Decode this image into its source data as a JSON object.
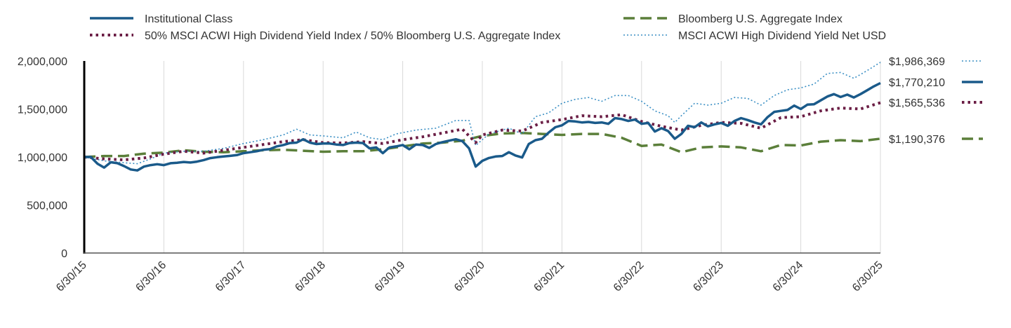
{
  "chart_data": {
    "type": "line",
    "title": "",
    "xlabel": "",
    "ylabel": "",
    "ylim": [
      0,
      2000000
    ],
    "yticks": [
      0,
      500000,
      1000000,
      1500000,
      2000000
    ],
    "ytick_labels": [
      "0",
      "500,000",
      "1,000,000",
      "1,500,000",
      "2,000,000"
    ],
    "xlim": [
      0,
      120
    ],
    "xticks": [
      0,
      12,
      24,
      36,
      48,
      60,
      72,
      84,
      96,
      108,
      120
    ],
    "xtick_labels": [
      "6/30/15",
      "6/30/16",
      "6/30/17",
      "6/30/18",
      "6/30/19",
      "6/30/20",
      "6/30/21",
      "6/30/22",
      "6/30/23",
      "6/30/24",
      "6/30/25"
    ],
    "x_unit": "months since 6/30/15",
    "grid": "vertical",
    "legend_position": "top",
    "series": [
      {
        "name": "Institutional Class",
        "style": "solid",
        "color": "#1a5a8a",
        "end_label": "$1,770,210",
        "points": [
          [
            0,
            1000000
          ],
          [
            1,
            1000000
          ],
          [
            2,
            930000
          ],
          [
            3,
            890000
          ],
          [
            4,
            945000
          ],
          [
            5,
            935000
          ],
          [
            6,
            905000
          ],
          [
            7,
            870000
          ],
          [
            8,
            860000
          ],
          [
            9,
            900000
          ],
          [
            10,
            915000
          ],
          [
            11,
            925000
          ],
          [
            12,
            915000
          ],
          [
            13,
            935000
          ],
          [
            14,
            940000
          ],
          [
            15,
            948000
          ],
          [
            16,
            942000
          ],
          [
            17,
            952000
          ],
          [
            18,
            968000
          ],
          [
            19,
            988000
          ],
          [
            20,
            998000
          ],
          [
            21,
            1005000
          ],
          [
            22,
            1012000
          ],
          [
            23,
            1020000
          ],
          [
            24,
            1040000
          ],
          [
            25,
            1050000
          ],
          [
            26,
            1060000
          ],
          [
            27,
            1075000
          ],
          [
            28,
            1082000
          ],
          [
            29,
            1110000
          ],
          [
            30,
            1125000
          ],
          [
            31,
            1145000
          ],
          [
            32,
            1150000
          ],
          [
            33,
            1185000
          ],
          [
            34,
            1150000
          ],
          [
            35,
            1135000
          ],
          [
            36,
            1140000
          ],
          [
            37,
            1140000
          ],
          [
            38,
            1130000
          ],
          [
            39,
            1125000
          ],
          [
            40,
            1145000
          ],
          [
            41,
            1150000
          ],
          [
            42,
            1145000
          ],
          [
            43,
            1090000
          ],
          [
            44,
            1100000
          ],
          [
            45,
            1040000
          ],
          [
            46,
            1100000
          ],
          [
            47,
            1110000
          ],
          [
            48,
            1125000
          ],
          [
            49,
            1080000
          ],
          [
            50,
            1130000
          ],
          [
            51,
            1125000
          ],
          [
            52,
            1095000
          ],
          [
            53,
            1135000
          ],
          [
            54,
            1155000
          ],
          [
            55,
            1170000
          ],
          [
            56,
            1185000
          ],
          [
            57,
            1165000
          ],
          [
            58,
            1090000
          ],
          [
            59,
            900000
          ],
          [
            60,
            960000
          ],
          [
            61,
            990000
          ],
          [
            62,
            1005000
          ],
          [
            63,
            1010000
          ],
          [
            64,
            1050000
          ],
          [
            65,
            1015000
          ],
          [
            66,
            995000
          ],
          [
            67,
            1135000
          ],
          [
            68,
            1175000
          ],
          [
            69,
            1190000
          ],
          [
            70,
            1255000
          ],
          [
            71,
            1310000
          ],
          [
            72,
            1330000
          ],
          [
            73,
            1375000
          ],
          [
            74,
            1370000
          ],
          [
            75,
            1360000
          ],
          [
            76,
            1365000
          ],
          [
            77,
            1355000
          ],
          [
            78,
            1360000
          ],
          [
            79,
            1345000
          ],
          [
            80,
            1405000
          ],
          [
            81,
            1395000
          ],
          [
            82,
            1375000
          ],
          [
            83,
            1390000
          ],
          [
            84,
            1345000
          ],
          [
            85,
            1355000
          ],
          [
            86,
            1265000
          ],
          [
            87,
            1300000
          ],
          [
            88,
            1270000
          ],
          [
            89,
            1190000
          ],
          [
            90,
            1240000
          ],
          [
            91,
            1325000
          ],
          [
            92,
            1310000
          ],
          [
            93,
            1360000
          ],
          [
            94,
            1320000
          ],
          [
            95,
            1340000
          ],
          [
            96,
            1355000
          ],
          [
            97,
            1325000
          ],
          [
            98,
            1375000
          ],
          [
            99,
            1405000
          ],
          [
            100,
            1385000
          ],
          [
            101,
            1360000
          ],
          [
            102,
            1340000
          ],
          [
            103,
            1415000
          ],
          [
            104,
            1470000
          ],
          [
            105,
            1480000
          ],
          [
            106,
            1490000
          ],
          [
            107,
            1535000
          ],
          [
            108,
            1500000
          ],
          [
            109,
            1545000
          ],
          [
            110,
            1550000
          ],
          [
            111,
            1590000
          ],
          [
            112,
            1630000
          ],
          [
            113,
            1655000
          ],
          [
            114,
            1625000
          ],
          [
            115,
            1650000
          ],
          [
            116,
            1620000
          ],
          [
            117,
            1655000
          ],
          [
            118,
            1695000
          ],
          [
            119,
            1735000
          ],
          [
            120,
            1770210
          ]
        ]
      },
      {
        "name": "Bloomberg U.S. Aggregate Index",
        "style": "dashed",
        "color": "#5b7f3a",
        "end_label": "$1,190,376",
        "points": [
          [
            0,
            1000000
          ],
          [
            3,
            1010000
          ],
          [
            6,
            1010000
          ],
          [
            9,
            1035000
          ],
          [
            12,
            1045000
          ],
          [
            15,
            1070000
          ],
          [
            18,
            1055000
          ],
          [
            21,
            1050000
          ],
          [
            24,
            1060000
          ],
          [
            27,
            1070000
          ],
          [
            30,
            1075000
          ],
          [
            33,
            1065000
          ],
          [
            36,
            1055000
          ],
          [
            39,
            1060000
          ],
          [
            42,
            1060000
          ],
          [
            45,
            1080000
          ],
          [
            48,
            1110000
          ],
          [
            51,
            1140000
          ],
          [
            54,
            1150000
          ],
          [
            57,
            1170000
          ],
          [
            60,
            1220000
          ],
          [
            63,
            1245000
          ],
          [
            66,
            1250000
          ],
          [
            69,
            1240000
          ],
          [
            72,
            1230000
          ],
          [
            75,
            1240000
          ],
          [
            78,
            1240000
          ],
          [
            81,
            1200000
          ],
          [
            84,
            1115000
          ],
          [
            87,
            1130000
          ],
          [
            90,
            1050000
          ],
          [
            93,
            1100000
          ],
          [
            96,
            1110000
          ],
          [
            99,
            1100000
          ],
          [
            102,
            1060000
          ],
          [
            105,
            1125000
          ],
          [
            108,
            1120000
          ],
          [
            111,
            1160000
          ],
          [
            114,
            1175000
          ],
          [
            117,
            1165000
          ],
          [
            120,
            1190376
          ]
        ]
      },
      {
        "name": "50% MSCI ACWI High Dividend Yield Index / 50% Bloomberg U.S. Aggregate Index",
        "style": "dotted",
        "color": "#6b1e45",
        "end_label": "$1,565,536",
        "points": [
          [
            0,
            1000000
          ],
          [
            3,
            980000
          ],
          [
            6,
            970000
          ],
          [
            9,
            990000
          ],
          [
            12,
            1030000
          ],
          [
            15,
            1060000
          ],
          [
            18,
            1040000
          ],
          [
            21,
            1070000
          ],
          [
            24,
            1100000
          ],
          [
            27,
            1130000
          ],
          [
            30,
            1160000
          ],
          [
            33,
            1180000
          ],
          [
            36,
            1150000
          ],
          [
            39,
            1145000
          ],
          [
            42,
            1160000
          ],
          [
            45,
            1140000
          ],
          [
            48,
            1180000
          ],
          [
            51,
            1210000
          ],
          [
            54,
            1250000
          ],
          [
            57,
            1290000
          ],
          [
            59,
            1150000
          ],
          [
            60,
            1230000
          ],
          [
            63,
            1280000
          ],
          [
            66,
            1270000
          ],
          [
            69,
            1360000
          ],
          [
            72,
            1390000
          ],
          [
            75,
            1430000
          ],
          [
            78,
            1420000
          ],
          [
            81,
            1440000
          ],
          [
            84,
            1370000
          ],
          [
            87,
            1320000
          ],
          [
            90,
            1280000
          ],
          [
            93,
            1330000
          ],
          [
            96,
            1360000
          ],
          [
            99,
            1350000
          ],
          [
            102,
            1300000
          ],
          [
            105,
            1410000
          ],
          [
            108,
            1420000
          ],
          [
            111,
            1480000
          ],
          [
            114,
            1510000
          ],
          [
            117,
            1500000
          ],
          [
            120,
            1565536
          ]
        ]
      },
      {
        "name": "MSCI ACWI High Dividend Yield Net USD",
        "style": "dotted-fine",
        "color": "#3a8fc4",
        "end_label": "$1,986,369",
        "points": [
          [
            0,
            1000000
          ],
          [
            3,
            960000
          ],
          [
            6,
            940000
          ],
          [
            8,
            930000
          ],
          [
            10,
            980000
          ],
          [
            12,
            1040000
          ],
          [
            15,
            1060000
          ],
          [
            18,
            1060000
          ],
          [
            21,
            1090000
          ],
          [
            24,
            1140000
          ],
          [
            27,
            1180000
          ],
          [
            30,
            1230000
          ],
          [
            32,
            1290000
          ],
          [
            34,
            1230000
          ],
          [
            36,
            1220000
          ],
          [
            39,
            1200000
          ],
          [
            41,
            1260000
          ],
          [
            43,
            1200000
          ],
          [
            45,
            1180000
          ],
          [
            47,
            1240000
          ],
          [
            50,
            1280000
          ],
          [
            53,
            1300000
          ],
          [
            56,
            1380000
          ],
          [
            58,
            1380000
          ],
          [
            59,
            1120000
          ],
          [
            61,
            1240000
          ],
          [
            64,
            1300000
          ],
          [
            66,
            1240000
          ],
          [
            68,
            1420000
          ],
          [
            70,
            1460000
          ],
          [
            72,
            1560000
          ],
          [
            74,
            1600000
          ],
          [
            76,
            1620000
          ],
          [
            78,
            1580000
          ],
          [
            80,
            1640000
          ],
          [
            82,
            1640000
          ],
          [
            84,
            1580000
          ],
          [
            86,
            1480000
          ],
          [
            88,
            1430000
          ],
          [
            89,
            1360000
          ],
          [
            90,
            1430000
          ],
          [
            92,
            1560000
          ],
          [
            94,
            1540000
          ],
          [
            96,
            1560000
          ],
          [
            98,
            1620000
          ],
          [
            100,
            1610000
          ],
          [
            102,
            1540000
          ],
          [
            104,
            1640000
          ],
          [
            106,
            1700000
          ],
          [
            108,
            1720000
          ],
          [
            110,
            1760000
          ],
          [
            112,
            1870000
          ],
          [
            114,
            1880000
          ],
          [
            116,
            1820000
          ],
          [
            118,
            1900000
          ],
          [
            120,
            1986369
          ]
        ]
      }
    ]
  }
}
